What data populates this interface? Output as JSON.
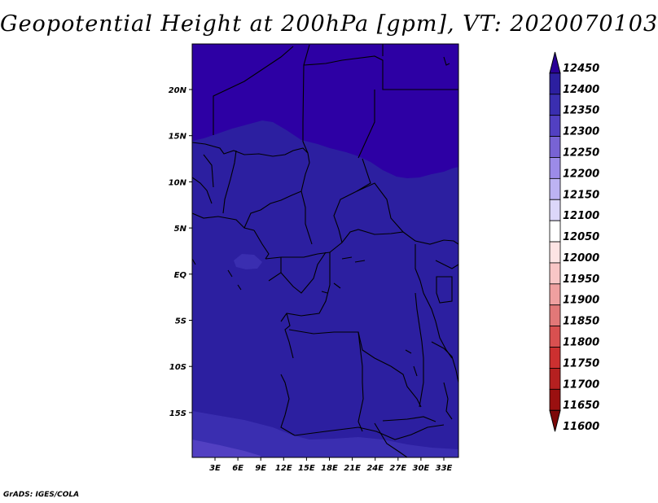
{
  "title": "Geopotential Height at 200hPa [gpm], VT: 2020070103",
  "credit": "GrADS: IGES/COLA",
  "map": {
    "lon_ticks": [
      "3E",
      "6E",
      "9E",
      "12E",
      "15E",
      "18E",
      "21E",
      "24E",
      "27E",
      "30E",
      "33E"
    ],
    "lat_ticks": [
      "20N",
      "15N",
      "10N",
      "5N",
      "EQ",
      "5S",
      "10S",
      "15S"
    ],
    "colors": {
      "level_12400": "#2d00a4",
      "level_12350": "#2c1fa0",
      "level_12300": "#3a2eb0",
      "level_12250": "#5240c2",
      "coast": "#000000"
    }
  },
  "colorbar": {
    "levels": [
      "12450",
      "12400",
      "12350",
      "12300",
      "12250",
      "12200",
      "12150",
      "12100",
      "12050",
      "12000",
      "11950",
      "11900",
      "11850",
      "11800",
      "11750",
      "11700",
      "11650",
      "11600"
    ],
    "colors": [
      "#2a0096",
      "#2c1fa0",
      "#3a2eb0",
      "#5240c2",
      "#7863d4",
      "#9c8be8",
      "#bdb3f2",
      "#dcd7fa",
      "#ffffff",
      "#fde4e4",
      "#f8c6c6",
      "#efa0a0",
      "#e27878",
      "#d95050",
      "#cc3030",
      "#b52020",
      "#9a1010",
      "#7d0808"
    ]
  }
}
